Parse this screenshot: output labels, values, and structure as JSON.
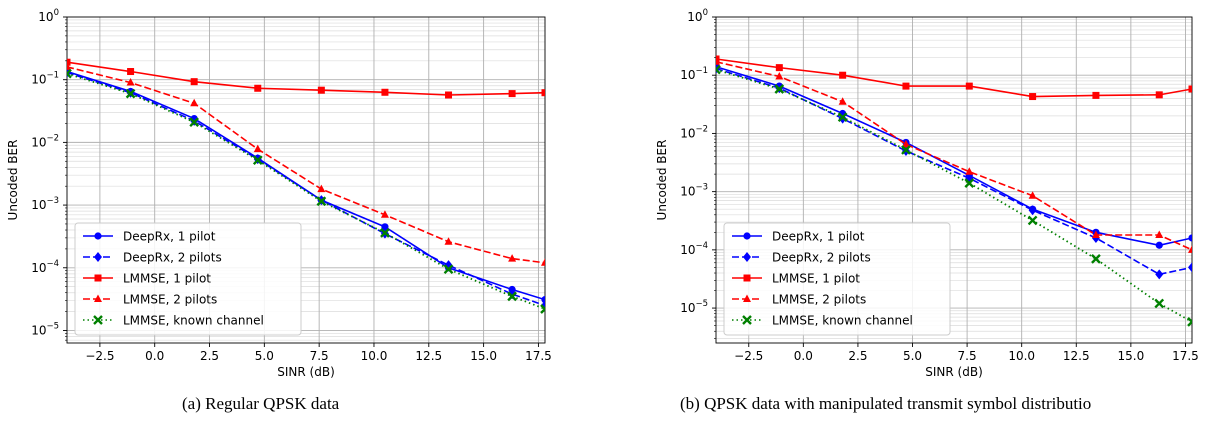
{
  "captions": [
    "(a) Regular QPSK data",
    "(b) QPSK data with manipulated transmit symbol distributio"
  ],
  "chart_data": [
    {
      "type": "line",
      "xlabel": "SINR (dB)",
      "ylabel": "Uncoded BER",
      "xlim": [
        -4,
        17.8
      ],
      "ylim_exponent": [
        -5.2,
        0
      ],
      "yscale": "log",
      "xticks": [
        -2.5,
        0.0,
        2.5,
        5.0,
        7.5,
        10.0,
        12.5,
        15.0,
        17.5
      ],
      "xtick_labels": [
        "−2.5",
        "0.0",
        "2.5",
        "5.0",
        "7.5",
        "10.0",
        "12.5",
        "15.0",
        "17.5"
      ],
      "ytick_exponents": [
        0,
        -1,
        -2,
        -3,
        -4,
        -5
      ],
      "grid": true,
      "legend_position": "bottom-left",
      "series": [
        {
          "name": "DeepRx, 1 pilot",
          "color": "#0000ff",
          "dash": "solid",
          "marker": "circle",
          "x": [
            -4,
            -1.1,
            1.8,
            4.7,
            7.6,
            10.5,
            13.4,
            16.3,
            17.8
          ],
          "y": [
            0.135,
            0.065,
            0.024,
            0.0056,
            0.0012,
            0.00045,
            0.0001,
            4.5e-05,
            3.1e-05
          ]
        },
        {
          "name": "DeepRx, 2 pilots",
          "color": "#0000ff",
          "dash": "dashed",
          "marker": "diamond",
          "x": [
            -4,
            -1.1,
            1.8,
            4.7,
            7.6,
            10.5,
            13.4,
            16.3,
            17.8
          ],
          "y": [
            0.13,
            0.062,
            0.022,
            0.0054,
            0.0012,
            0.00035,
            0.00011,
            3.8e-05,
            2.5e-05
          ]
        },
        {
          "name": "LMMSE, 1 pilot",
          "color": "#ff0000",
          "dash": "solid",
          "marker": "square",
          "x": [
            -4,
            -1.1,
            1.8,
            4.7,
            7.6,
            10.5,
            13.4,
            16.3,
            17.8
          ],
          "y": [
            0.19,
            0.135,
            0.093,
            0.073,
            0.068,
            0.063,
            0.057,
            0.06,
            0.062
          ]
        },
        {
          "name": "LMMSE, 2 pilots",
          "color": "#ff0000",
          "dash": "dashed",
          "marker": "triangle",
          "x": [
            -4,
            -1.1,
            1.8,
            4.7,
            7.6,
            10.5,
            13.4,
            16.3,
            17.8
          ],
          "y": [
            0.16,
            0.09,
            0.042,
            0.0078,
            0.0018,
            0.0007,
            0.00026,
            0.00014,
            0.00012
          ]
        },
        {
          "name": "LMMSE, known channel",
          "color": "#008000",
          "dash": "dotted",
          "marker": "x",
          "x": [
            -4,
            -1.1,
            1.8,
            4.7,
            7.6,
            10.5,
            13.4,
            16.3,
            17.8
          ],
          "y": [
            0.125,
            0.06,
            0.021,
            0.0052,
            0.00115,
            0.00036,
            9.5e-05,
            3.5e-05,
            2.2e-05
          ]
        }
      ]
    },
    {
      "type": "line",
      "xlabel": "SINR (dB)",
      "ylabel": "Uncoded BER",
      "xlim": [
        -4,
        17.8
      ],
      "ylim_exponent": [
        -5.6,
        0
      ],
      "yscale": "log",
      "xticks": [
        -2.5,
        0.0,
        2.5,
        5.0,
        7.5,
        10.0,
        12.5,
        15.0,
        17.5
      ],
      "xtick_labels": [
        "−2.5",
        "0.0",
        "2.5",
        "5.0",
        "7.5",
        "10.0",
        "12.5",
        "15.0",
        "17.5"
      ],
      "ytick_exponents": [
        0,
        -1,
        -2,
        -3,
        -4,
        -5
      ],
      "grid": true,
      "legend_position": "bottom-left",
      "series": [
        {
          "name": "DeepRx, 1 pilot",
          "color": "#0000ff",
          "dash": "solid",
          "marker": "circle",
          "x": [
            -4,
            -1.1,
            1.8,
            4.7,
            7.6,
            10.5,
            13.4,
            16.3,
            17.8
          ],
          "y": [
            0.14,
            0.065,
            0.022,
            0.007,
            0.0019,
            0.0005,
            0.0002,
            0.00012,
            0.00016
          ]
        },
        {
          "name": "DeepRx, 2 pilots",
          "color": "#0000ff",
          "dash": "dashed",
          "marker": "diamond",
          "x": [
            -4,
            -1.1,
            1.8,
            4.7,
            7.6,
            10.5,
            13.4,
            16.3,
            17.8
          ],
          "y": [
            0.13,
            0.06,
            0.018,
            0.005,
            0.0017,
            0.00048,
            0.00016,
            3.8e-05,
            5e-05
          ]
        },
        {
          "name": "LMMSE, 1 pilot",
          "color": "#ff0000",
          "dash": "solid",
          "marker": "square",
          "x": [
            -4,
            -1.1,
            1.8,
            4.7,
            7.6,
            10.5,
            13.4,
            16.3,
            17.8
          ],
          "y": [
            0.19,
            0.135,
            0.1,
            0.065,
            0.065,
            0.043,
            0.045,
            0.046,
            0.058
          ]
        },
        {
          "name": "LMMSE, 2 pilots",
          "color": "#ff0000",
          "dash": "dashed",
          "marker": "triangle",
          "x": [
            -4,
            -1.1,
            1.8,
            4.7,
            7.6,
            10.5,
            13.4,
            16.3,
            17.8
          ],
          "y": [
            0.17,
            0.095,
            0.035,
            0.0065,
            0.0022,
            0.00085,
            0.00018,
            0.00018,
            0.0001
          ]
        },
        {
          "name": "LMMSE, known channel",
          "color": "#008000",
          "dash": "dotted",
          "marker": "x",
          "x": [
            -4,
            -1.1,
            1.8,
            4.7,
            7.6,
            10.5,
            13.4,
            16.3,
            17.8
          ],
          "y": [
            0.125,
            0.058,
            0.019,
            0.0052,
            0.0014,
            0.00032,
            7e-05,
            1.2e-05,
            5.8e-06
          ]
        }
      ]
    }
  ]
}
